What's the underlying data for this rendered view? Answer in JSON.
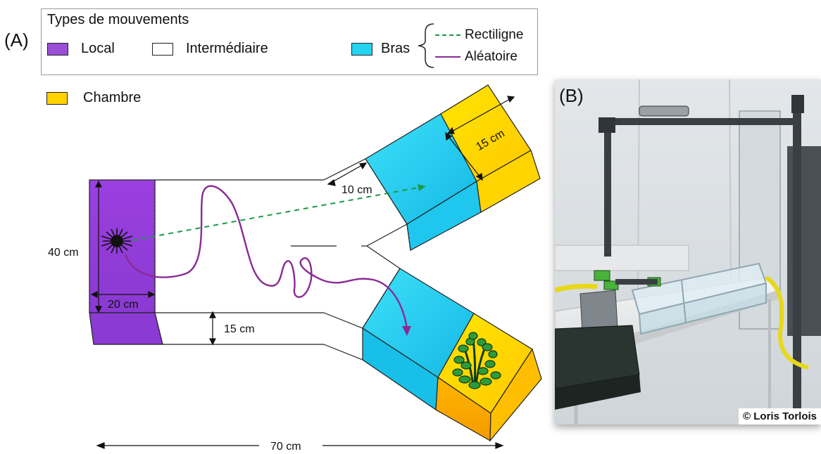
{
  "panel_a_label": "(A)",
  "panel_b_label": "(B)",
  "legend": {
    "title": "Types de mouvements",
    "items": [
      {
        "label": "Local",
        "color": "#9b4fd6"
      },
      {
        "label": "Intermédiaire",
        "color": "#ffffff"
      },
      {
        "label": "Bras",
        "color": "#22d4f2"
      }
    ],
    "paths": [
      {
        "label": "Rectiligne",
        "color": "#1a9a47",
        "style": "dashed"
      },
      {
        "label": "Aléatoire",
        "color": "#8a2a95",
        "style": "solid"
      }
    ],
    "chambre": {
      "label": "Chambre",
      "color": "#ffd200"
    }
  },
  "dimensions": {
    "height": "40 cm",
    "width_local": "20 cm",
    "arm_width": "15 cm",
    "arm_gap": "10 cm",
    "chamber": "15 cm",
    "total": "70  cm"
  },
  "photo": {
    "credit": "© Loris Torlois"
  }
}
